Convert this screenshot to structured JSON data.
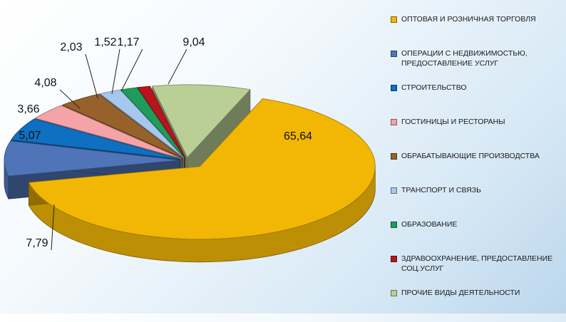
{
  "chart_data": {
    "type": "pie",
    "title": "",
    "legend_position": "right",
    "categories": [
      "ОПТОВАЯ И РОЗНИЧНАЯ ТОРГОВЛЯ",
      "ОПЕРАЦИИ С НЕДВИЖИМОСТЬЮ, ПРЕДОСТАВЛЕНИЕ УСЛУГ",
      "СТРОИТЕЛЬСТВО",
      "ГОСТИНИЦЫ И РЕСТОРАНЫ",
      "ОБРАБАТЫВАЮЩИЕ ПРОИЗВОДСТВА",
      "ТРАНСПОРТ И СВЯЗЬ",
      "ОБРАЗОВАНИЕ",
      "ЗДРАВООХРАНЕНИЕ, ПРЕДОСТАВЛЕНИЕ СОЦ.УСЛУГ",
      "ПРОЧИЕ ВИДЫ ДЕЯТЕЛЬНОСТИ"
    ],
    "values": [
      65.64,
      7.79,
      5.07,
      3.66,
      4.08,
      2.03,
      1.52,
      1.17,
      9.04
    ],
    "value_labels": [
      "65,64",
      "7,79",
      "5,07",
      "3,66",
      "4,08",
      "2,03",
      "1,52",
      "1,17",
      "9,04"
    ],
    "colors": [
      "#f2b705",
      "#4f74b8",
      "#0f6fc1",
      "#f4a3a6",
      "#96612b",
      "#a6c8ee",
      "#1f9c5b",
      "#b8141c",
      "#b9cf96"
    ]
  }
}
